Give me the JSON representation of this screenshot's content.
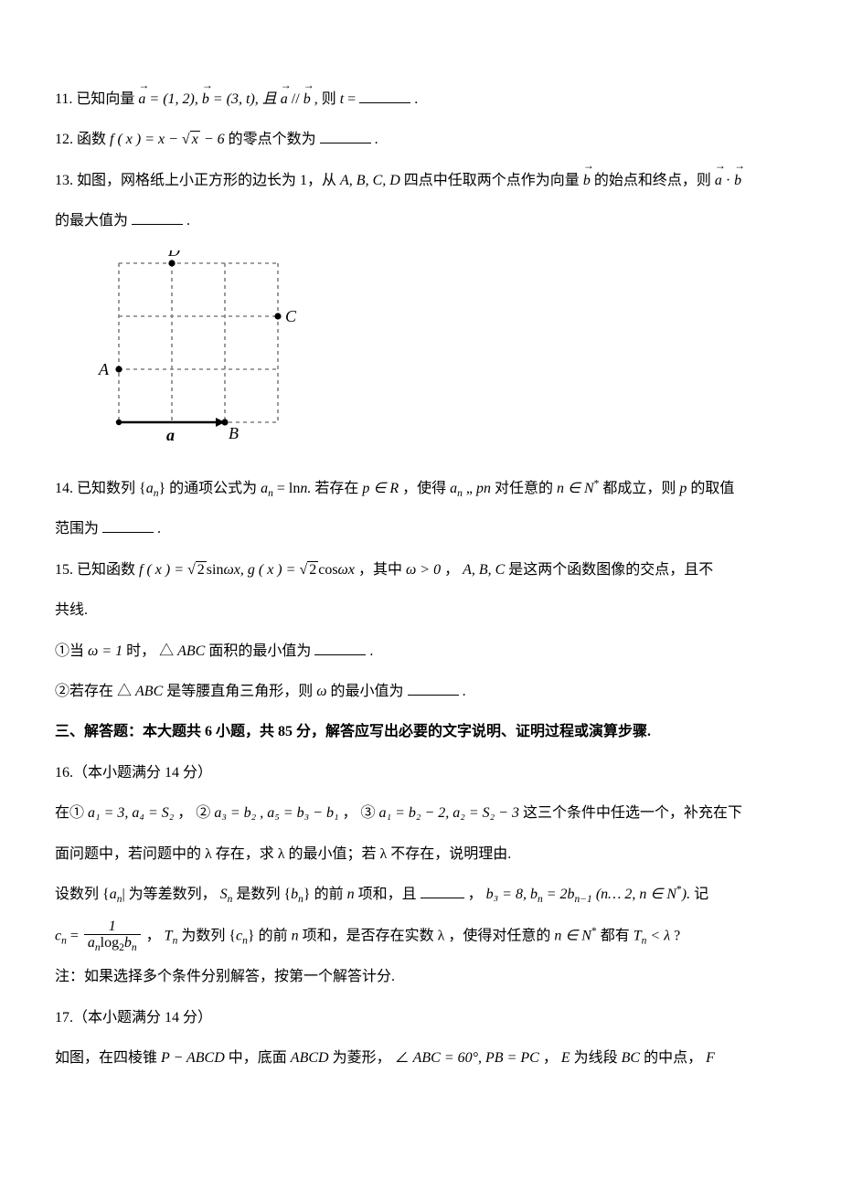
{
  "q11": {
    "prefix": "11. 已知向量 ",
    "a_eq": " = (1, 2), ",
    "b_eq": " = (3, ",
    "t": "t",
    "paren_close": "), 且 ",
    "parallel_mid": " // ",
    "suffix": ", 则 ",
    "t2": "t",
    "eq": " = ",
    "period": "."
  },
  "q12": {
    "prefix": "12. 函数 ",
    "fx": "f ( x ) = x − ",
    "sqrt_inner": "x",
    "minus6": " − 6",
    "suffix": " 的零点个数为",
    "period": "."
  },
  "q13": {
    "line1a": "13. 如图，网格纸上小正方形的边长为 1，从 ",
    "pts": "A,  B,  C,  D",
    "line1b": " 四点中任取两个点作为向量 ",
    "line1c": " 的始点和终点，则 ",
    "dot": " · ",
    "line2": "的最大值为",
    "period": "."
  },
  "diagram": {
    "grid": {
      "cell": 58,
      "cols": 3,
      "rows": 3,
      "stroke": "#808080",
      "dash": "4 4",
      "stroke_width": 1.6
    },
    "arrow_color": "#000000",
    "points": {
      "A": {
        "gx": 0,
        "gy": 2,
        "label": "A",
        "label_dx": -22,
        "label_dy": 6
      },
      "B": {
        "gx": 2,
        "gy": 3,
        "label": "B",
        "label_dx": 4,
        "label_dy": 18
      },
      "C": {
        "gx": 3,
        "gy": 1,
        "label": "C",
        "label_dx": 8,
        "label_dy": 6
      },
      "D": {
        "gx": 1,
        "gy": 0,
        "label": "D",
        "label_dx": -4,
        "label_dy": -8
      }
    },
    "a_label": "a"
  },
  "q14": {
    "prefix": "14. 已知数列 {",
    "an": "a",
    "an_sub": "n",
    "brace_close": "} 的通项公式为 ",
    "formula": "a",
    "formula_sub": "n",
    "eq_ln": " = ln",
    "n_period": "n.",
    "mid": " 若存在 ",
    "p": "p",
    "in_r": " ∈ R",
    "text2": "，使得 ",
    "an2": "a",
    "an2_sub": "n",
    "comma": " „ ",
    "pn": "pn",
    "text3": " 对任意的 ",
    "n_in": "n ∈ N",
    "star": "*",
    "text4": " 都成立，则 ",
    "p2": "p",
    "text5": " 的取值",
    "line2": "范围为",
    "period": "."
  },
  "q15": {
    "prefix": "15. 已知函数 ",
    "fx": "f ( x ) = ",
    "sqrt2_1": "2",
    "sin": "sin",
    "omega_x1": "ωx, ",
    "gx": "g ( x ) = ",
    "sqrt2_2": "2",
    "cos": "cos",
    "omega_x2": "ωx",
    "text1": " ，其中 ",
    "omega_gt0": "ω > 0",
    "text2": " ， ",
    "abc": "A, B, C",
    "text3": " 是这两个函数图像的交点，且不",
    "line2": "共线.",
    "item1_pre": "①当 ",
    "omega_eq1": "ω = 1",
    "item1_mid": " 时， △",
    "abc2": "ABC",
    "item1_suf": " 面积的最小值为",
    "period1": ".",
    "item2_pre": "②若存在 △",
    "abc3": "ABC",
    "item2_mid": " 是等腰直角三角形，则 ",
    "omega": "ω",
    "item2_suf": " 的最小值为",
    "period2": "."
  },
  "section3": "三、解答题：本大题共 6 小题，共 85 分，解答应写出必要的文字说明、证明过程或演算步骤.",
  "q16": {
    "header": "16.（本小题满分 14 分）",
    "line1a": "在① ",
    "c1": "a₁ = 3, a₄ = S₂",
    "line1b": " ， ② ",
    "c2": "a₃ = b₂ , a₅ = b₃ − b₁",
    "line1c": " ， ③ ",
    "c3": "a₁ = b₂ − 2, a₂ = S₂ − 3",
    "line1d": " 这三个条件中任选一个，补充在下",
    "line2": "面问题中，若问题中的 λ 存在，求 λ 的最小值；若 λ 不存在，说明理由.",
    "line3a": "设数列 {",
    "an": "a",
    "an_sub": "n",
    "line3b": "| 为等差数列， ",
    "sn": "S",
    "sn_sub": "n",
    "line3c": " 是数列 {",
    "bn": "b",
    "bn_sub": "n",
    "line3d": "} 的前 ",
    "n": "n",
    "line3e": " 项和，且 ",
    "line3f": "， ",
    "b3": "b₃ = 8, b",
    "b3_subn": "n",
    "eq2b": " = 2b",
    "nm1": "n−1",
    "paren": " (n… 2, n ∈ N",
    "star": "*",
    "paren_close": "). ",
    "line3g": "记",
    "cn_label": "c",
    "cn_sub": "n",
    "eq": " = ",
    "frac_num": "1",
    "frac_den_a": "a",
    "frac_den_a_sub": "n",
    "frac_den_log": "log",
    "frac_den_log_sub": "2",
    "frac_den_b": "b",
    "frac_den_b_sub": "n",
    "line4a": " ， ",
    "tn": "T",
    "tn_sub": "n",
    "line4b": " 为数列 {",
    "cn2": "c",
    "cn2_sub": "n",
    "line4c": "} 的前 ",
    "n2": "n",
    "line4d": " 项和，是否存在实数 λ ，使得对任意的 ",
    "n_in": "n ∈ N",
    "star2": "*",
    "line4e": " 都有 ",
    "tn2": "T",
    "tn2_sub": "n",
    "lt_lambda": " < λ",
    "qmark": " ?",
    "note": "注：如果选择多个条件分别解答，按第一个解答计分."
  },
  "q17": {
    "header": "17.（本小题满分 14 分）",
    "line1a": "如图，在四棱锥 ",
    "pabcd": "P − ABCD",
    "line1b": " 中，底面 ",
    "abcd": "ABCD",
    "line1c": " 为菱形， ∠",
    "abc": "ABC",
    "eq60": " = 60°, ",
    "pb_pc": "PB = PC",
    "line1d": " ， ",
    "e": "E",
    "line1e": " 为线段 ",
    "bc": "BC",
    "line1f": " 的中点， ",
    "f": "F"
  }
}
